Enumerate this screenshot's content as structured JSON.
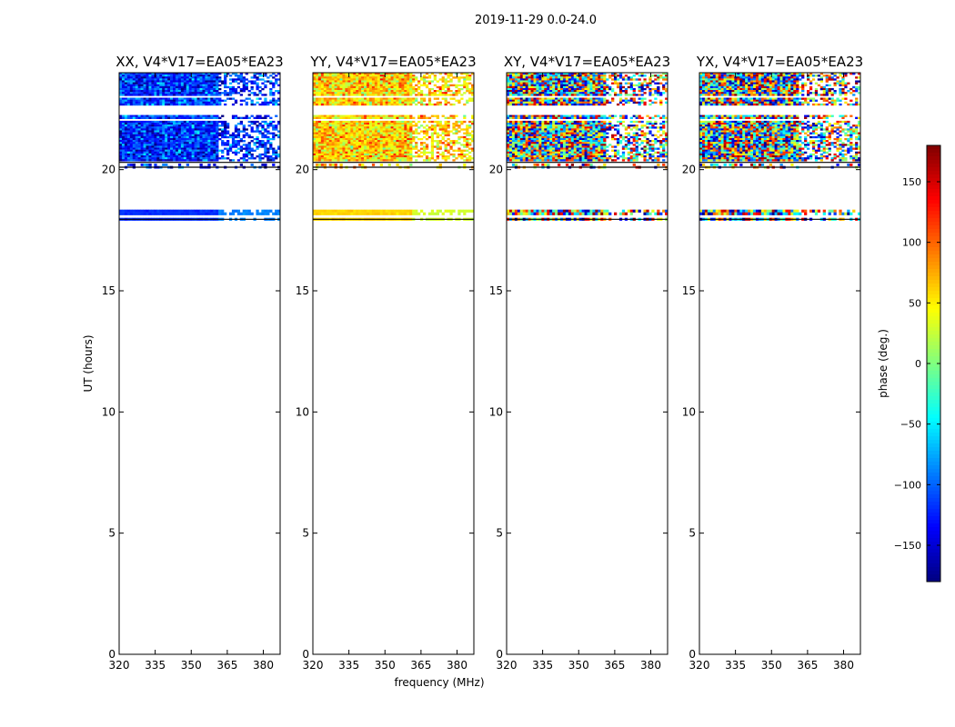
{
  "chart_data": {
    "type": "heatmap",
    "suptitle": "2019-11-29 0.0-24.0",
    "xlabel": "frequency (MHz)",
    "ylabel": "UT (hours)",
    "xlim": [
      320,
      387
    ],
    "ylim": [
      0,
      24
    ],
    "xticks": [
      "320",
      "335",
      "350",
      "365",
      "380"
    ],
    "yticks": [
      "0",
      "5",
      "10",
      "15",
      "20"
    ],
    "panels": [
      {
        "title": "XX, V4*V17=EA05*EA23",
        "mean_phase_deg": -120
      },
      {
        "title": "YY, V4*V17=EA05*EA23",
        "mean_phase_deg": 60
      },
      {
        "title": "XY, V4*V17=EA05*EA23",
        "mean_phase_deg": null
      },
      {
        "title": "YX, V4*V17=EA05*EA23",
        "mean_phase_deg": null
      }
    ],
    "data_time_bands_hours": [
      {
        "from": 20.35,
        "to": 24.0
      },
      {
        "from": 20.05,
        "to": 20.25
      },
      {
        "from": 17.9,
        "to": 18.35
      }
    ],
    "colorbar": {
      "label": "phase (deg.)",
      "range": [
        -180,
        180
      ],
      "ticks": [
        "150",
        "100",
        "50",
        "0",
        "−50",
        "−100",
        "−150"
      ],
      "colormap": "jet"
    }
  }
}
